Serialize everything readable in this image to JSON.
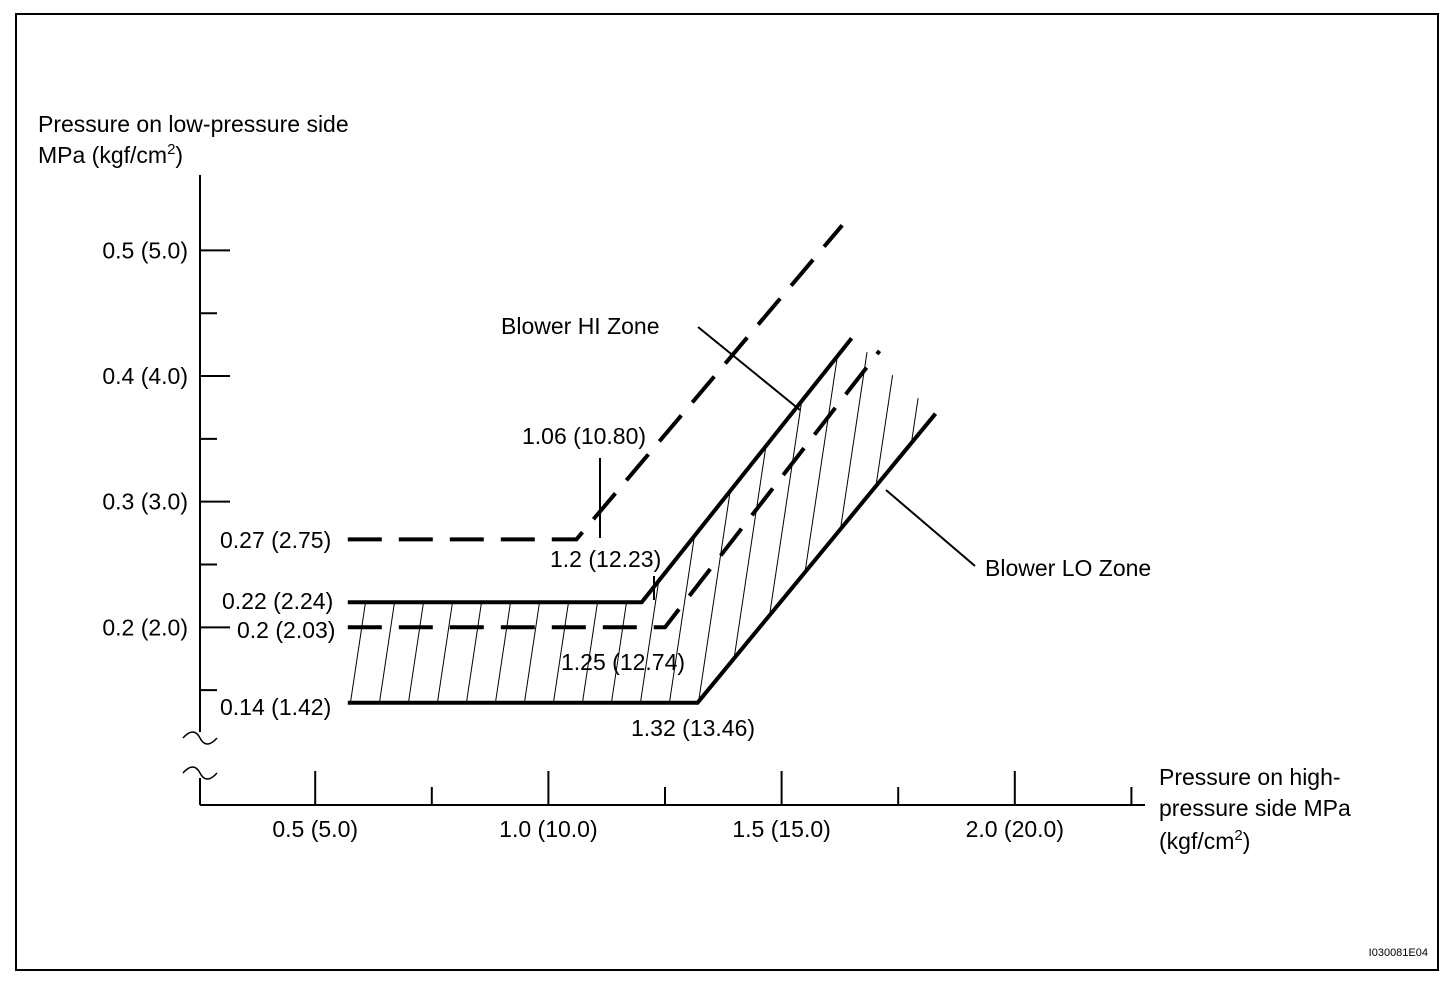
{
  "chart_data": {
    "type": "line",
    "ylabel_line1": "Pressure on low-pressure side",
    "ylabel_line2": "MPa (kgf/cm",
    "ylabel_sup": "2",
    "ylabel_close": ")",
    "xlabel_line1": "Pressure on high-",
    "xlabel_line2": "pressure side MPa",
    "xlabel_line3": "(kgf/cm",
    "xlabel_sup": "2",
    "xlabel_close": ")",
    "x_axis_break": true,
    "y_axis_break": true,
    "x_ticks": [
      {
        "value": 0.5,
        "label": "0.5 (5.0)"
      },
      {
        "value": 0.75,
        "label": ""
      },
      {
        "value": 1.0,
        "label": "1.0 (10.0)"
      },
      {
        "value": 1.25,
        "label": ""
      },
      {
        "value": 1.5,
        "label": "1.5 (15.0)"
      },
      {
        "value": 1.75,
        "label": ""
      },
      {
        "value": 2.0,
        "label": "2.0 (20.0)"
      },
      {
        "value": 2.25,
        "label": ""
      }
    ],
    "y_ticks": [
      {
        "value": 0.15,
        "label": ""
      },
      {
        "value": 0.2,
        "label": "0.2 (2.0)"
      },
      {
        "value": 0.25,
        "label": ""
      },
      {
        "value": 0.3,
        "label": "0.3 (3.0)"
      },
      {
        "value": 0.35,
        "label": ""
      },
      {
        "value": 0.4,
        "label": "0.4 (4.0)"
      },
      {
        "value": 0.45,
        "label": ""
      },
      {
        "value": 0.5,
        "label": "0.5 (5.0)"
      }
    ],
    "series": [
      {
        "style": "dashed-thick",
        "points": [
          [
            0.57,
            0.27
          ],
          [
            1.06,
            0.27
          ],
          [
            1.63,
            0.52
          ]
        ]
      },
      {
        "style": "solid-thick",
        "points": [
          [
            0.57,
            0.22
          ],
          [
            1.2,
            0.22
          ],
          [
            1.65,
            0.43
          ]
        ]
      },
      {
        "style": "dashed-thick",
        "points": [
          [
            0.57,
            0.2
          ],
          [
            1.25,
            0.2
          ],
          [
            1.71,
            0.42
          ]
        ]
      },
      {
        "style": "solid-thick",
        "points": [
          [
            0.57,
            0.14
          ],
          [
            1.32,
            0.14
          ],
          [
            1.83,
            0.37
          ]
        ]
      }
    ],
    "point_labels": [
      {
        "label": "0.27 (2.75)",
        "value": 0.27
      },
      {
        "label": "0.22 (2.24)",
        "value": 0.22
      },
      {
        "label": "0.2 (2.03)",
        "value": 0.2
      },
      {
        "label": "0.14 (1.42)",
        "value": 0.14
      },
      {
        "label": "1.06 (10.80)",
        "value": 1.06
      },
      {
        "label": "1.2 (12.23)",
        "value": 1.2
      },
      {
        "label": "1.25 (12.74)",
        "value": 1.25
      },
      {
        "label": "1.32 (13.46)",
        "value": 1.32
      }
    ],
    "annotations": [
      {
        "label": "Blower HI Zone"
      },
      {
        "label": "Blower LO Zone"
      }
    ],
    "figure_id": "I030081E04"
  }
}
